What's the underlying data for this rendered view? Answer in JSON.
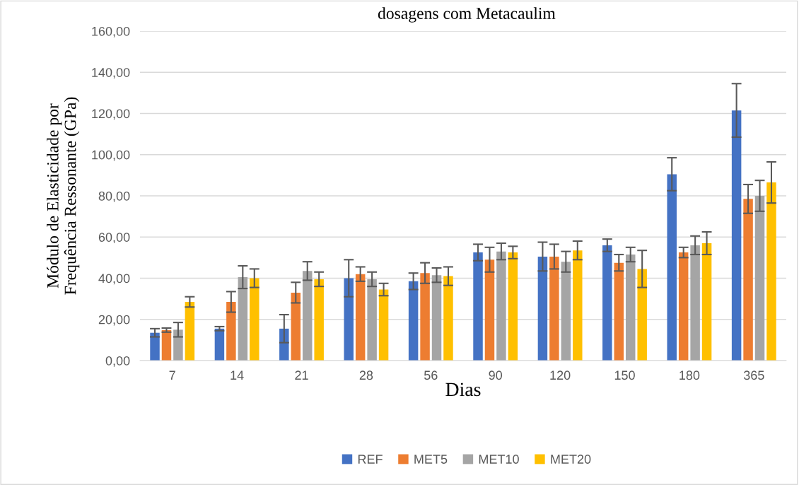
{
  "chart_data": {
    "type": "bar",
    "title": "dosagens com Metacaulim",
    "xlabel": "Dias",
    "ylabel": "Módulo de Elasticidade por\nFrequência Ressonante (GPa)",
    "categories": [
      "7",
      "14",
      "21",
      "28",
      "56",
      "90",
      "120",
      "150",
      "180",
      "365"
    ],
    "series": [
      {
        "name": "REF",
        "color": "#4472c4",
        "values": [
          13.5,
          15.5,
          15.5,
          40,
          38.5,
          52.5,
          50.5,
          56,
          90.5,
          121.5
        ],
        "errors": [
          2,
          1,
          6.8,
          9,
          4,
          4,
          7,
          3,
          8,
          13
        ]
      },
      {
        "name": "MET5",
        "color": "#ed7d31",
        "values": [
          14.8,
          28.5,
          33,
          42,
          42.5,
          49,
          50.5,
          47.5,
          52.5,
          78.5
        ],
        "errors": [
          1,
          5,
          5,
          3.5,
          5,
          6,
          6,
          4,
          2.5,
          7
        ]
      },
      {
        "name": "MET10",
        "color": "#a5a5a5",
        "values": [
          15,
          40.5,
          43.5,
          39.5,
          41.5,
          53,
          48,
          51.5,
          56,
          80
        ],
        "errors": [
          3.5,
          5.5,
          4.5,
          3.5,
          3.5,
          4,
          5,
          3.5,
          4.5,
          7.5
        ]
      },
      {
        "name": "MET20",
        "color": "#ffc000",
        "values": [
          28.5,
          40,
          39.5,
          34.5,
          41,
          52.5,
          53.5,
          44.5,
          57,
          86.5
        ],
        "errors": [
          2.5,
          4.5,
          3.5,
          3,
          4.5,
          3,
          4.5,
          9,
          5.5,
          10
        ]
      }
    ],
    "ylim": [
      0,
      160
    ],
    "yticks": [
      {
        "value": 0,
        "label": "0,00"
      },
      {
        "value": 20,
        "label": "20,00"
      },
      {
        "value": 40,
        "label": "40,00"
      },
      {
        "value": 60,
        "label": "60,00"
      },
      {
        "value": 80,
        "label": "80,00"
      },
      {
        "value": 100,
        "label": "100,00"
      },
      {
        "value": 120,
        "label": "120,00"
      },
      {
        "value": 140,
        "label": "140,00"
      },
      {
        "value": 160,
        "label": "160,00"
      }
    ],
    "grid": "y",
    "legend": "bottom"
  }
}
